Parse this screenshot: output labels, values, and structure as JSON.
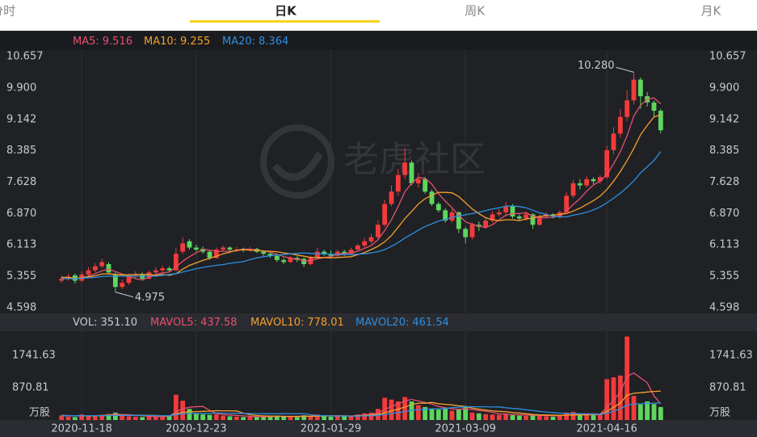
{
  "tabs": [
    "分时",
    "日K",
    "周K",
    "月K"
  ],
  "active_tab": 1,
  "chart_data": [
    {
      "type": "candlestick",
      "watermark": "老虎社区",
      "max_label": "10.280",
      "min_label": "4.975",
      "up_color": "#f23b3b",
      "down_color": "#5ed65e",
      "grid": false,
      "categories": [
        null,
        null,
        null,
        "2020-11-18",
        null,
        null,
        null,
        null,
        null,
        null,
        null,
        null,
        null,
        null,
        null,
        null,
        null,
        null,
        null,
        null,
        "2020-12-23",
        null,
        null,
        null,
        null,
        null,
        null,
        null,
        null,
        null,
        null,
        null,
        null,
        null,
        null,
        null,
        null,
        null,
        null,
        null,
        "2021-01-29",
        null,
        null,
        null,
        null,
        null,
        null,
        null,
        null,
        null,
        null,
        null,
        null,
        null,
        null,
        null,
        null,
        null,
        null,
        null,
        "2021-03-09",
        null,
        null,
        null,
        null,
        null,
        null,
        null,
        null,
        null,
        null,
        null,
        null,
        null,
        null,
        null,
        null,
        null,
        null,
        null,
        null,
        "2021-04-16",
        null,
        null,
        null,
        null,
        null,
        null,
        null,
        null
      ],
      "open": [
        5.25,
        5.3,
        5.38,
        5.25,
        5.4,
        5.5,
        5.6,
        5.65,
        5.4,
        5.1,
        5.2,
        5.38,
        5.4,
        5.3,
        5.45,
        5.5,
        5.55,
        5.5,
        5.95,
        6.2,
        6.05,
        6.02,
        5.95,
        5.8,
        6.0,
        6.05,
        5.97,
        6.02,
        5.98,
        6.02,
        5.95,
        5.9,
        5.85,
        5.75,
        5.7,
        5.8,
        5.78,
        5.65,
        5.8,
        5.95,
        5.9,
        5.85,
        5.95,
        5.9,
        6.0,
        6.1,
        6.2,
        6.3,
        6.6,
        7.1,
        7.4,
        7.8,
        8.1,
        7.6,
        7.7,
        7.4,
        7.1,
        6.95,
        6.7,
        6.9,
        6.5,
        6.3,
        6.6,
        6.55,
        6.7,
        6.85,
        6.9,
        7.05,
        6.8,
        6.75,
        6.85,
        6.6,
        6.8,
        6.85,
        6.8,
        6.9,
        7.3,
        7.6,
        7.55,
        7.7,
        7.65,
        7.75,
        8.4,
        8.8,
        9.2,
        9.6,
        10.1,
        9.7,
        9.55,
        9.35
      ],
      "high": [
        5.38,
        5.42,
        5.42,
        5.48,
        5.58,
        5.68,
        5.78,
        5.7,
        5.45,
        5.28,
        5.42,
        5.48,
        5.45,
        5.5,
        5.58,
        5.62,
        5.6,
        6.05,
        6.3,
        6.25,
        6.12,
        6.08,
        6.0,
        6.05,
        6.1,
        6.08,
        6.06,
        6.05,
        6.06,
        6.04,
        5.98,
        5.95,
        5.88,
        5.8,
        5.85,
        5.84,
        5.8,
        5.85,
        6.05,
        6.0,
        5.98,
        6.0,
        6.0,
        6.05,
        6.15,
        6.28,
        6.38,
        6.7,
        7.2,
        7.55,
        7.95,
        8.45,
        8.15,
        7.85,
        7.75,
        7.45,
        7.15,
        7.0,
        6.98,
        6.92,
        6.55,
        6.65,
        6.68,
        6.78,
        6.92,
        6.98,
        7.15,
        7.1,
        6.85,
        6.92,
        6.88,
        6.85,
        6.9,
        6.88,
        6.95,
        7.38,
        7.68,
        7.7,
        7.78,
        7.75,
        7.8,
        8.5,
        8.95,
        9.4,
        9.85,
        10.28,
        10.15,
        9.8,
        9.6,
        9.4
      ],
      "low": [
        5.2,
        5.25,
        5.18,
        5.22,
        5.35,
        5.45,
        5.55,
        5.4,
        4.975,
        5.05,
        5.15,
        5.3,
        5.25,
        5.28,
        5.4,
        5.45,
        5.45,
        5.48,
        5.9,
        6.0,
        5.95,
        5.9,
        5.75,
        5.78,
        5.95,
        5.95,
        5.95,
        5.94,
        5.95,
        5.92,
        5.85,
        5.8,
        5.7,
        5.65,
        5.68,
        5.7,
        5.58,
        5.62,
        5.78,
        5.85,
        5.8,
        5.82,
        5.85,
        5.88,
        5.98,
        6.05,
        6.15,
        6.28,
        6.55,
        7.05,
        7.3,
        7.7,
        7.55,
        7.5,
        7.35,
        7.05,
        6.9,
        6.65,
        6.65,
        6.4,
        6.15,
        6.25,
        6.45,
        6.5,
        6.65,
        6.8,
        6.85,
        6.75,
        6.7,
        6.7,
        6.5,
        6.58,
        6.75,
        6.75,
        6.75,
        6.88,
        7.25,
        7.45,
        7.5,
        7.58,
        7.6,
        7.7,
        8.3,
        8.7,
        9.1,
        9.5,
        9.4,
        9.45,
        9.2,
        8.8
      ],
      "close": [
        5.3,
        5.35,
        5.25,
        5.4,
        5.5,
        5.6,
        5.7,
        5.45,
        5.1,
        5.2,
        5.35,
        5.4,
        5.3,
        5.45,
        5.5,
        5.55,
        5.5,
        5.9,
        6.15,
        6.05,
        6.0,
        5.95,
        5.8,
        6.0,
        6.05,
        6.0,
        6.0,
        5.98,
        6.02,
        5.95,
        5.9,
        5.85,
        5.75,
        5.7,
        5.8,
        5.75,
        5.65,
        5.8,
        5.95,
        5.9,
        5.85,
        5.95,
        5.9,
        6.0,
        6.1,
        6.2,
        6.3,
        6.6,
        7.1,
        7.4,
        7.8,
        8.1,
        7.6,
        7.7,
        7.4,
        7.1,
        6.95,
        6.7,
        6.9,
        6.5,
        6.3,
        6.6,
        6.55,
        6.7,
        6.85,
        6.9,
        7.05,
        6.8,
        6.75,
        6.85,
        6.6,
        6.8,
        6.85,
        6.8,
        6.9,
        7.3,
        7.6,
        7.55,
        7.7,
        7.65,
        7.75,
        8.4,
        8.8,
        9.2,
        9.6,
        10.1,
        9.7,
        9.55,
        9.35,
        8.88
      ],
      "series": [
        {
          "name": "MA5:",
          "color": "#e8506e",
          "values": [
            5.32,
            5.33,
            5.3,
            5.32,
            5.36,
            5.42,
            5.49,
            5.53,
            5.47,
            5.41,
            5.36,
            5.3,
            5.27,
            5.34,
            5.4,
            5.44,
            5.46,
            5.58,
            5.72,
            5.83,
            5.92,
            6.01,
            5.99,
            5.96,
            5.96,
            5.96,
            5.97,
            6.01,
            6.01,
            5.99,
            5.97,
            5.94,
            5.89,
            5.83,
            5.8,
            5.77,
            5.73,
            5.73,
            5.78,
            5.81,
            5.83,
            5.89,
            5.91,
            5.92,
            5.96,
            6.03,
            6.1,
            6.24,
            6.46,
            6.72,
            7.04,
            7.4,
            7.6,
            7.74,
            7.72,
            7.58,
            7.35,
            7.17,
            7.01,
            6.83,
            6.67,
            6.61,
            6.57,
            6.53,
            6.6,
            6.72,
            6.83,
            6.87,
            6.87,
            6.89,
            6.81,
            6.77,
            6.77,
            6.78,
            6.81,
            6.93,
            7.09,
            7.23,
            7.41,
            7.56,
            7.65,
            7.81,
            8.07,
            8.36,
            8.75,
            9.22,
            9.48,
            9.63,
            9.66,
            9.516
          ]
        },
        {
          "name": "MA10:",
          "color": "#f5a02c",
          "values": [
            5.33,
            5.33,
            5.31,
            5.32,
            5.34,
            5.37,
            5.41,
            5.42,
            5.4,
            5.39,
            5.39,
            5.4,
            5.4,
            5.4,
            5.38,
            5.4,
            5.38,
            5.42,
            5.53,
            5.62,
            5.68,
            5.74,
            5.79,
            5.84,
            5.9,
            5.94,
            5.99,
            6.0,
            5.99,
            5.98,
            5.97,
            5.96,
            5.95,
            5.92,
            5.9,
            5.87,
            5.84,
            5.81,
            5.81,
            5.81,
            5.8,
            5.81,
            5.82,
            5.83,
            5.88,
            5.93,
            6.0,
            6.08,
            6.19,
            6.34,
            6.54,
            6.75,
            6.92,
            7.1,
            7.23,
            7.31,
            7.38,
            7.38,
            7.37,
            7.28,
            7.13,
            6.98,
            6.87,
            6.77,
            6.72,
            6.7,
            6.72,
            6.72,
            6.7,
            6.74,
            6.76,
            6.8,
            6.82,
            6.83,
            6.85,
            6.87,
            6.93,
            7.0,
            7.09,
            7.18,
            7.29,
            7.45,
            7.65,
            7.88,
            8.15,
            8.44,
            8.77,
            9.0,
            9.2,
            9.255
          ]
        },
        {
          "name": "MA20:",
          "color": "#2f8fe0",
          "values": [
            5.3,
            5.3,
            5.3,
            5.31,
            5.32,
            5.33,
            5.35,
            5.36,
            5.36,
            5.36,
            5.36,
            5.36,
            5.36,
            5.36,
            5.36,
            5.38,
            5.4,
            5.42,
            5.46,
            5.5,
            5.54,
            5.57,
            5.6,
            5.62,
            5.64,
            5.67,
            5.69,
            5.71,
            5.76,
            5.8,
            5.83,
            5.85,
            5.87,
            5.88,
            5.9,
            5.91,
            5.92,
            5.91,
            5.9,
            5.9,
            5.89,
            5.88,
            5.88,
            5.88,
            5.89,
            5.9,
            5.92,
            5.95,
            6.0,
            6.08,
            6.17,
            6.28,
            6.37,
            6.47,
            6.56,
            6.62,
            6.69,
            6.73,
            6.78,
            6.81,
            6.84,
            6.87,
            6.9,
            6.94,
            6.98,
            7.01,
            7.05,
            7.05,
            7.04,
            7.01,
            6.95,
            6.89,
            6.85,
            6.8,
            6.79,
            6.79,
            6.83,
            6.86,
            6.9,
            6.96,
            7.03,
            7.13,
            7.24,
            7.36,
            7.5,
            7.66,
            7.85,
            8.0,
            8.15,
            8.364
          ]
        }
      ],
      "ylim": [
        4.598,
        10.657
      ],
      "yticks": [
        4.598,
        5.355,
        6.113,
        {
          "value": 6.87,
          "label": "6.870"
        },
        7.628,
        8.385,
        9.142,
        {
          "value": 9.9,
          "label": "9.900"
        },
        10.657
      ]
    },
    {
      "type": "bar",
      "unit": "万股",
      "legend": {
        "name": "VOL:",
        "value": "351.10"
      },
      "values": [
        120,
        90,
        80,
        150,
        110,
        130,
        140,
        160,
        200,
        120,
        100,
        90,
        80,
        110,
        90,
        100,
        120,
        680,
        520,
        300,
        180,
        150,
        140,
        160,
        120,
        100,
        90,
        80,
        100,
        90,
        80,
        110,
        120,
        100,
        90,
        80,
        130,
        120,
        150,
        100,
        90,
        100,
        110,
        120,
        150,
        180,
        200,
        300,
        600,
        550,
        500,
        620,
        500,
        400,
        350,
        300,
        280,
        320,
        250,
        300,
        350,
        200,
        180,
        160,
        150,
        140,
        170,
        130,
        120,
        110,
        150,
        130,
        100,
        90,
        120,
        200,
        220,
        150,
        140,
        130,
        160,
        1100,
        1150,
        1200,
        2250,
        650,
        420,
        500,
        430,
        351.1
      ],
      "series": [
        {
          "name": "MAVOL5:",
          "color": "#e8506e",
          "values": [
            130,
            120,
            110,
            115,
            110,
            112,
            122,
            138,
            156,
            150,
            144,
            122,
            118,
            100,
            94,
            94,
            100,
            220,
            302,
            344,
            360,
            366,
            258,
            186,
            150,
            134,
            122,
            110,
            100,
            92,
            88,
            92,
            100,
            100,
            100,
            100,
            104,
            104,
            114,
            116,
            118,
            118,
            114,
            104,
            114,
            132,
            152,
            190,
            286,
            366,
            430,
            514,
            554,
            514,
            474,
            434,
            366,
            330,
            300,
            290,
            300,
            284,
            256,
            238,
            208,
            166,
            160,
            150,
            142,
            134,
            136,
            122,
            122,
            116,
            118,
            128,
            146,
            156,
            164,
            168,
            160,
            336,
            536,
            756,
            1172,
            1270,
            1134,
            1004,
            650,
            437.58
          ]
        },
        {
          "name": "MAVOL10:",
          "color": "#f5a02c",
          "values": [
            120,
            118,
            115,
            115,
            115,
            118,
            120,
            124,
            133,
            130,
            128,
            130,
            128,
            128,
            122,
            118,
            111,
            169,
            209,
            222,
            227,
            233,
            239,
            253,
            247,
            247,
            244,
            184,
            143,
            121,
            111,
            107,
            105,
            96,
            96,
            96,
            98,
            102,
            107,
            108,
            109,
            111,
            109,
            109,
            116,
            125,
            135,
            152,
            195,
            249,
            291,
            352,
            419,
            452,
            452,
            474,
            440,
            422,
            407,
            382,
            366,
            325,
            293,
            269,
            249,
            233,
            222,
            203,
            190,
            171,
            151,
            141,
            136,
            133,
            126,
            132,
            134,
            139,
            140,
            143,
            148,
            236,
            341,
            460,
            670,
            720,
            735,
            755,
            770,
            778.01
          ]
        },
        {
          "name": "MAVOL20:",
          "color": "#2f8fe0",
          "values": [
            115,
            115,
            116,
            116,
            117,
            117,
            118,
            119,
            121,
            122,
            124,
            124,
            122,
            121,
            118,
            118,
            116,
            146,
            167,
            176,
            174,
            176,
            174,
            191,
            185,
            183,
            178,
            177,
            176,
            172,
            169,
            170,
            172,
            175,
            172,
            172,
            171,
            143,
            125,
            115,
            110,
            109,
            107,
            106,
            106,
            110,
            116,
            127,
            151,
            179,
            200,
            231,
            264,
            281,
            284,
            300,
            300,
            309,
            336,
            346,
            358,
            359,
            356,
            360,
            350,
            353,
            331,
            313,
            299,
            277,
            259,
            233,
            215,
            201,
            188,
            182,
            178,
            171,
            165,
            156,
            150,
            188,
            238,
            300,
            405,
            426,
            435,
            447,
            455,
            461.54
          ]
        }
      ],
      "ylim": [
        0,
        2350
      ],
      "yticks": [
        870.81,
        1741.63
      ]
    }
  ]
}
